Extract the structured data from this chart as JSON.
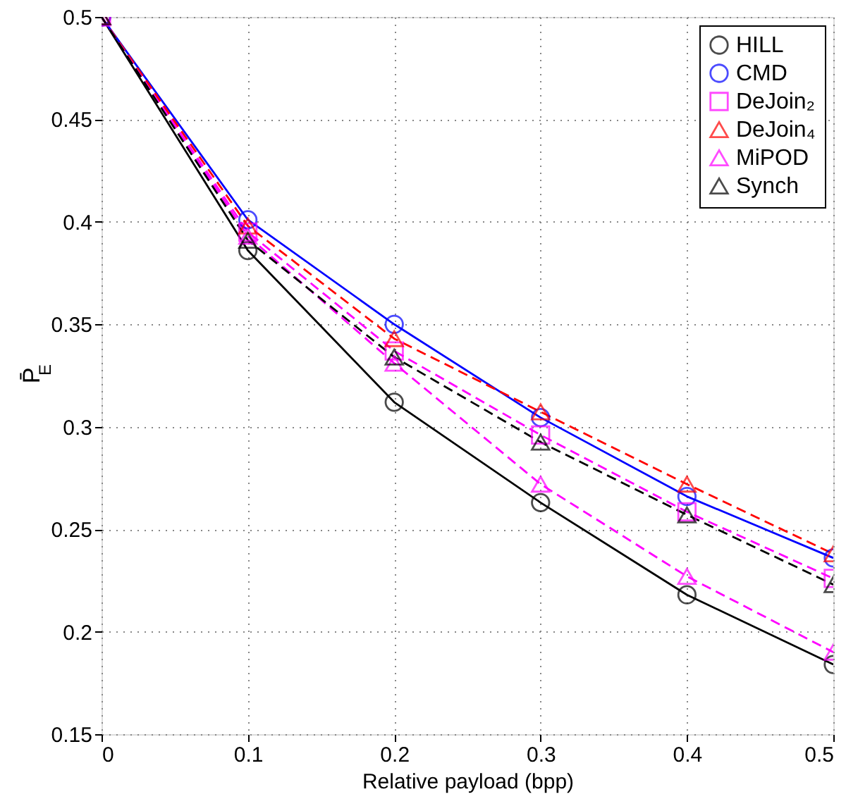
{
  "chart_data": {
    "type": "line",
    "xlabel": "Relative payload (bpp)",
    "ylabel": "P̄$_{E}$",
    "x": [
      0,
      0.1,
      0.2,
      0.3,
      0.4,
      0.5
    ],
    "series": [
      {
        "name": "HILL",
        "color": "#000000",
        "marker": "circle",
        "line_style": "solid",
        "values": [
          0.5,
          0.386,
          0.312,
          0.263,
          0.218,
          0.184
        ]
      },
      {
        "name": "CMD",
        "color": "#0000ff",
        "marker": "circle",
        "line_style": "solid",
        "values": [
          0.5,
          0.401,
          0.35,
          0.3045,
          0.266,
          0.236
        ]
      },
      {
        "name": "DeJoin₂",
        "color": "#ff00ff",
        "marker": "square",
        "line_style": "dashed",
        "values": [
          0.5,
          0.395,
          0.337,
          0.296,
          0.2585,
          0.226
        ]
      },
      {
        "name": "DeJoin₄",
        "color": "#ff0000",
        "marker": "triangle",
        "line_style": "dashed",
        "values": [
          0.5,
          0.398,
          0.343,
          0.3073,
          0.272,
          0.238
        ]
      },
      {
        "name": "MiPOD",
        "color": "#ff00ff",
        "marker": "triangle",
        "line_style": "dashed",
        "values": [
          0.5,
          0.393,
          0.331,
          0.272,
          0.227,
          0.19
        ]
      },
      {
        "name": "Synch",
        "color": "#000000",
        "marker": "triangle",
        "line_style": "dashed",
        "values": [
          0.5,
          0.391,
          0.334,
          0.2925,
          0.257,
          0.223
        ]
      }
    ],
    "xlim": [
      0,
      0.5
    ],
    "xticks": [
      0,
      0.1,
      0.2,
      0.3,
      0.4,
      0.5
    ],
    "ylim": [
      0.15,
      0.5
    ],
    "yticks": [
      0.15,
      0.2,
      0.25,
      0.3,
      0.35,
      0.4,
      0.45,
      0.5
    ],
    "grid": true,
    "legend": "top right"
  }
}
